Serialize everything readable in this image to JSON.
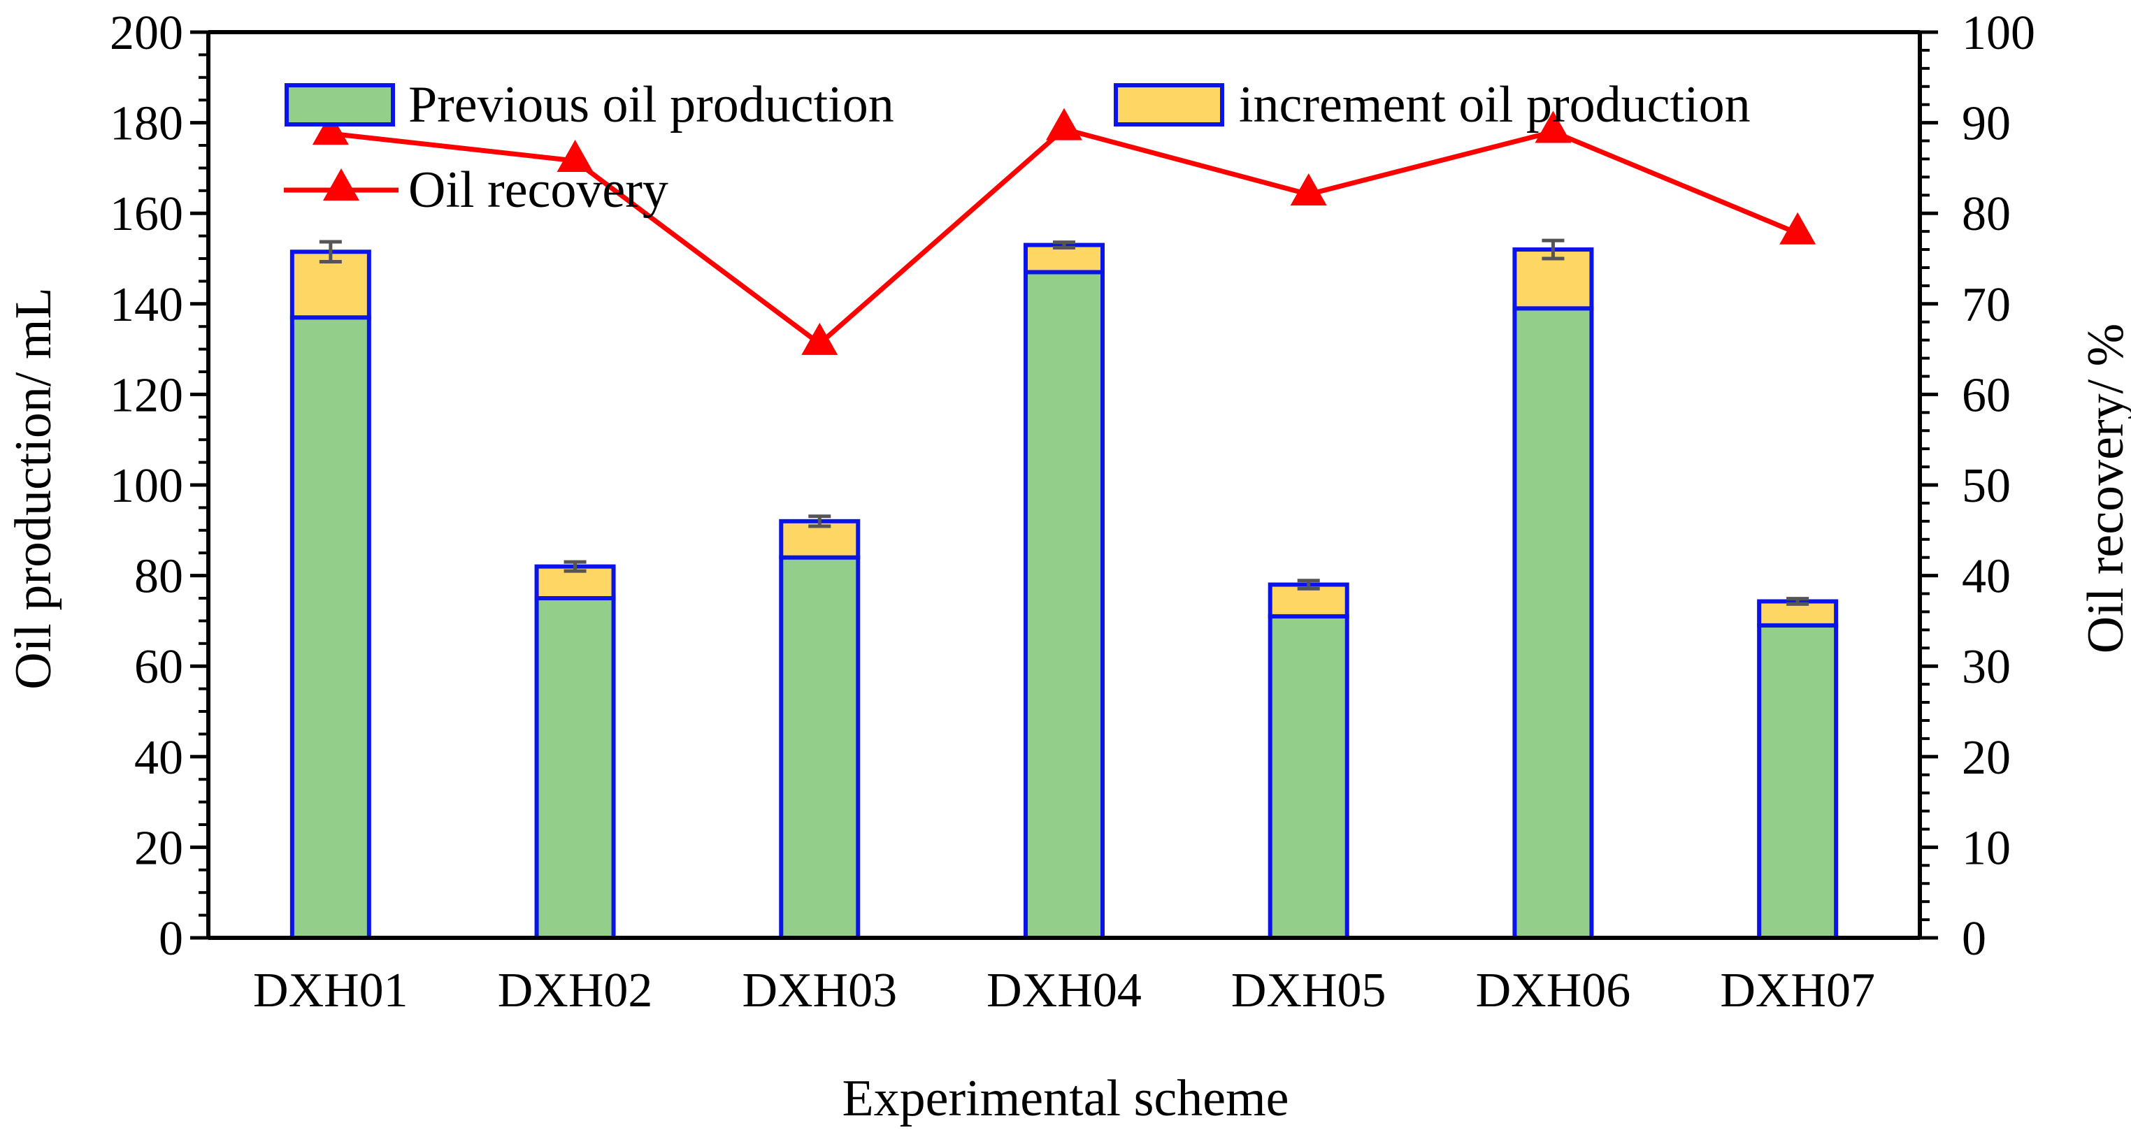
{
  "chart_data": {
    "type": "bar",
    "stacked": true,
    "xlabel": "Experimental scheme",
    "ylabel": "Oil production/ mL",
    "y2label": "Oil recovery/ %",
    "categories": [
      "DXH01",
      "DXH02",
      "DXH03",
      "DXH04",
      "DXH05",
      "DXH06",
      "DXH07"
    ],
    "ylim": [
      0,
      200
    ],
    "yticks": [
      "0",
      "20",
      "40",
      "60",
      "80",
      "100",
      "120",
      "140",
      "160",
      "180",
      "200"
    ],
    "y2lim": [
      0,
      100
    ],
    "y2ticks": [
      "0",
      "10",
      "20",
      "30",
      "40",
      "50",
      "60",
      "70",
      "80",
      "90",
      "100"
    ],
    "series": [
      {
        "name": "Previous oil production",
        "type": "bar",
        "axis": "left",
        "values": [
          137,
          75,
          84,
          147,
          71,
          139,
          69
        ],
        "color": "#93cf8a",
        "edge_color": "#0a14e6"
      },
      {
        "name": "increment oil production",
        "type": "bar",
        "axis": "left",
        "values": [
          14.5,
          7,
          8,
          6,
          7,
          13,
          5.3
        ],
        "error": [
          2.2,
          1.0,
          1.1,
          0.6,
          0.9,
          2.0,
          0.6
        ],
        "color": "#fdd664",
        "edge_color": "#0a14e6"
      },
      {
        "name": "Oil recovery",
        "type": "line",
        "axis": "right",
        "marker": "triangle",
        "values": [
          88.8,
          85.8,
          65.6,
          89.3,
          82.1,
          89.0,
          77.8
        ],
        "color": "#ff0000"
      }
    ],
    "legend_position": "top-left",
    "grid": false,
    "error_bar_color": "#555555"
  }
}
